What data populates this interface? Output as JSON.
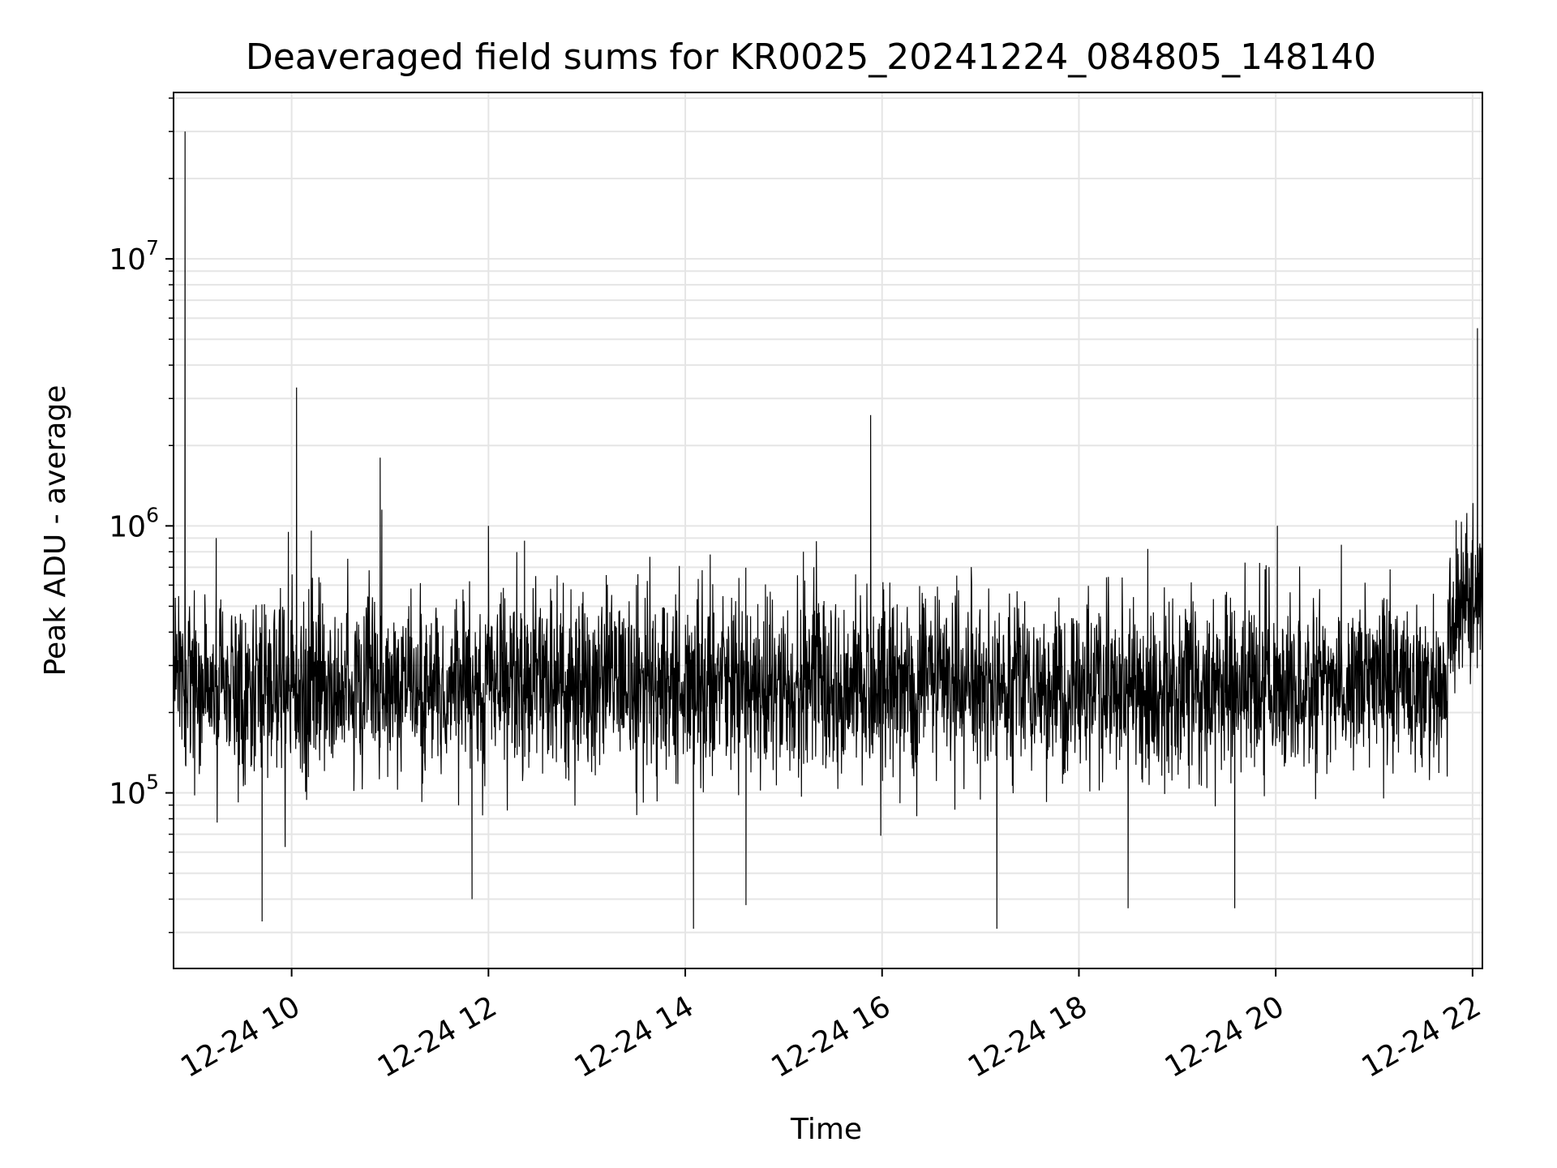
{
  "chart_data": {
    "type": "line",
    "title": "Deaveraged field sums for KR0025_20241224_084805_148140",
    "xlabel": "Time",
    "ylabel": "Peak ADU - average",
    "yscale": "log",
    "grid": true,
    "line_color": "#000000",
    "grid_color": "#e5e5e5",
    "xlim": [
      "2024-12-24 08:48",
      "2024-12-24 22:06"
    ],
    "ylim": [
      22000,
      42000000
    ],
    "x_ticks": [
      {
        "value": "2024-12-24 10:00",
        "label": "12-24 10"
      },
      {
        "value": "2024-12-24 12:00",
        "label": "12-24 12"
      },
      {
        "value": "2024-12-24 14:00",
        "label": "12-24 14"
      },
      {
        "value": "2024-12-24 16:00",
        "label": "12-24 16"
      },
      {
        "value": "2024-12-24 18:00",
        "label": "12-24 18"
      },
      {
        "value": "2024-12-24 20:00",
        "label": "12-24 20"
      },
      {
        "value": "2024-12-24 22:00",
        "label": "12-24 22"
      }
    ],
    "y_ticks": [
      {
        "value": 100000,
        "base": "10",
        "exp": "5"
      },
      {
        "value": 1000000,
        "base": "10",
        "exp": "6"
      },
      {
        "value": 10000000,
        "base": "10",
        "exp": "7"
      }
    ],
    "series": [
      {
        "baseline": 250000,
        "segments": [
          {
            "start": "2024-12-24 08:48",
            "end": "2024-12-24 21:45",
            "typical": 250000
          },
          {
            "start": "2024-12-24 21:45",
            "end": "2024-12-24 22:06",
            "typical": 520000
          }
        ],
        "points": [
          {
            "x": "2024-12-24 08:55",
            "y": 30000000
          },
          {
            "x": "2024-12-24 09:14",
            "y": 900000
          },
          {
            "x": "2024-12-24 09:42",
            "y": 33000
          },
          {
            "x": "2024-12-24 09:58",
            "y": 950000
          },
          {
            "x": "2024-12-24 10:03",
            "y": 3300000
          },
          {
            "x": "2024-12-24 10:12",
            "y": 960000
          },
          {
            "x": "2024-12-24 10:54",
            "y": 1800000
          },
          {
            "x": "2024-12-24 10:55",
            "y": 1150000
          },
          {
            "x": "2024-12-24 11:50",
            "y": 40000
          },
          {
            "x": "2024-12-24 12:00",
            "y": 1000000
          },
          {
            "x": "2024-12-24 12:22",
            "y": 880000
          },
          {
            "x": "2024-12-24 14:05",
            "y": 31000
          },
          {
            "x": "2024-12-24 14:37",
            "y": 38000
          },
          {
            "x": "2024-12-24 15:12",
            "y": 800000
          },
          {
            "x": "2024-12-24 15:53",
            "y": 2600000
          },
          {
            "x": "2024-12-24 17:10",
            "y": 31000
          },
          {
            "x": "2024-12-24 18:30",
            "y": 37000
          },
          {
            "x": "2024-12-24 18:42",
            "y": 820000
          },
          {
            "x": "2024-12-24 19:35",
            "y": 37000
          },
          {
            "x": "2024-12-24 20:01",
            "y": 1000000
          },
          {
            "x": "2024-12-24 20:40",
            "y": 850000
          },
          {
            "x": "2024-12-24 21:50",
            "y": 1050000
          },
          {
            "x": "2024-12-24 22:03",
            "y": 5500000
          }
        ]
      }
    ]
  }
}
